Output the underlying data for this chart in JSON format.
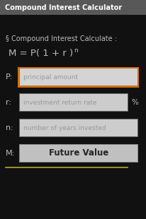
{
  "title_bar_text": "Compound Interest Calculator",
  "title_bar_bg": "#585858",
  "title_bar_text_color": "#ffffff",
  "bg_color": "#111111",
  "section_title": "§ Compound Interest Calculate :",
  "section_text_color": "#bbbbbb",
  "formula_base": "M = P( 1 + r )",
  "formula_exp": "n",
  "fields": [
    {
      "label": "P:",
      "placeholder": "principal amount",
      "border_color": "#d07010",
      "bg": "#d4d4d4",
      "suffix": ""
    },
    {
      "label": "r:",
      "placeholder": "investment return rate",
      "border_color": "#666666",
      "bg": "#cccccc",
      "suffix": "%"
    },
    {
      "label": "n:",
      "placeholder": "number of years invested",
      "border_color": "#666666",
      "bg": "#cccccc",
      "suffix": ""
    },
    {
      "label": "M:",
      "placeholder": "Future Value",
      "border_color": "#888888",
      "bg": "#c0c0c0",
      "suffix": "",
      "is_button": true
    }
  ],
  "label_color": "#bbbbbb",
  "divider_color": "#b8a830",
  "fig_w": 2.07,
  "fig_h": 3.1,
  "dpi": 100
}
